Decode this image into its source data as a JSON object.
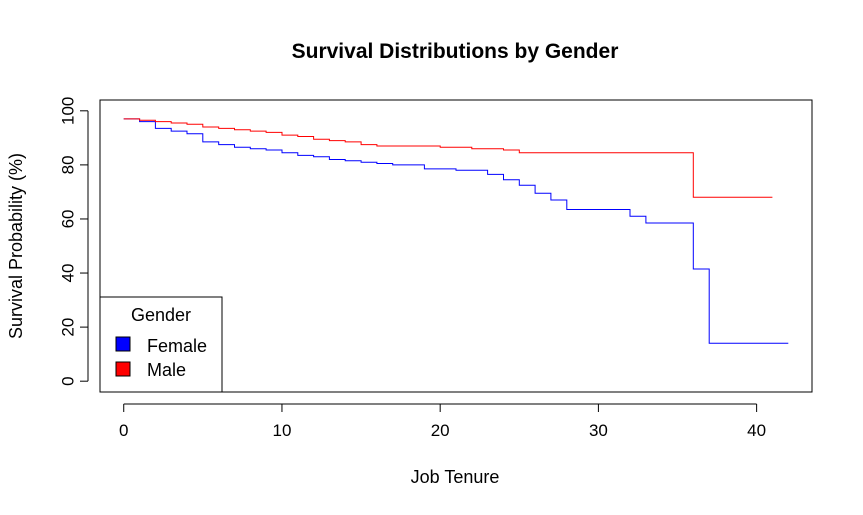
{
  "chart_data": {
    "type": "line",
    "step": true,
    "title": "Survival Distributions by Gender",
    "xlabel": "Job Tenure",
    "ylabel": "Survival Probability (%)",
    "xlim": [
      -1.5,
      43.5
    ],
    "ylim": [
      -4,
      104
    ],
    "xticks": [
      0,
      10,
      20,
      30,
      40
    ],
    "yticks": [
      0,
      20,
      40,
      60,
      80,
      100
    ],
    "grid": false,
    "legend": {
      "title": "Gender",
      "position": "bottom-left",
      "entries": [
        {
          "label": "Female",
          "color": "#0000ff"
        },
        {
          "label": "Male",
          "color": "#ff0000"
        }
      ]
    },
    "series": [
      {
        "name": "Female",
        "color": "#0000ff",
        "x": [
          0,
          1,
          2,
          3,
          4,
          5,
          6,
          7,
          8,
          9,
          10,
          11,
          12,
          13,
          14,
          15,
          16,
          17,
          18,
          19,
          20,
          21,
          22,
          23,
          24,
          25,
          26,
          27,
          28,
          29,
          30,
          31,
          32,
          33,
          34,
          35,
          36,
          37,
          42
        ],
        "y": [
          97,
          96,
          93.5,
          92.5,
          91.5,
          88.5,
          87.5,
          86.5,
          86,
          85.5,
          84.5,
          83.5,
          83,
          82,
          81.5,
          81,
          80.5,
          80,
          80,
          78.5,
          78.5,
          78,
          78,
          76.5,
          74.5,
          72.5,
          69.5,
          67,
          63.5,
          63.5,
          63.5,
          63.5,
          61,
          58.5,
          58.5,
          58.5,
          41.5,
          14,
          14
        ]
      },
      {
        "name": "Male",
        "color": "#ff0000",
        "x": [
          0,
          1,
          2,
          3,
          4,
          5,
          6,
          7,
          8,
          9,
          10,
          11,
          12,
          13,
          14,
          15,
          16,
          17,
          18,
          19,
          20,
          21,
          22,
          23,
          24,
          25,
          26,
          27,
          28,
          29,
          30,
          31,
          32,
          33,
          34,
          35,
          36,
          41
        ],
        "y": [
          97,
          96.5,
          96,
          95.5,
          95,
          94,
          93.5,
          93,
          92.5,
          92,
          91,
          90.5,
          89.5,
          89,
          88.5,
          87.5,
          87,
          87,
          87,
          87,
          86.5,
          86.5,
          86,
          86,
          85.5,
          84.5,
          84.5,
          84.5,
          84.5,
          84.5,
          84.5,
          84.5,
          84.5,
          84.5,
          84.5,
          84.5,
          68,
          68
        ]
      }
    ]
  }
}
